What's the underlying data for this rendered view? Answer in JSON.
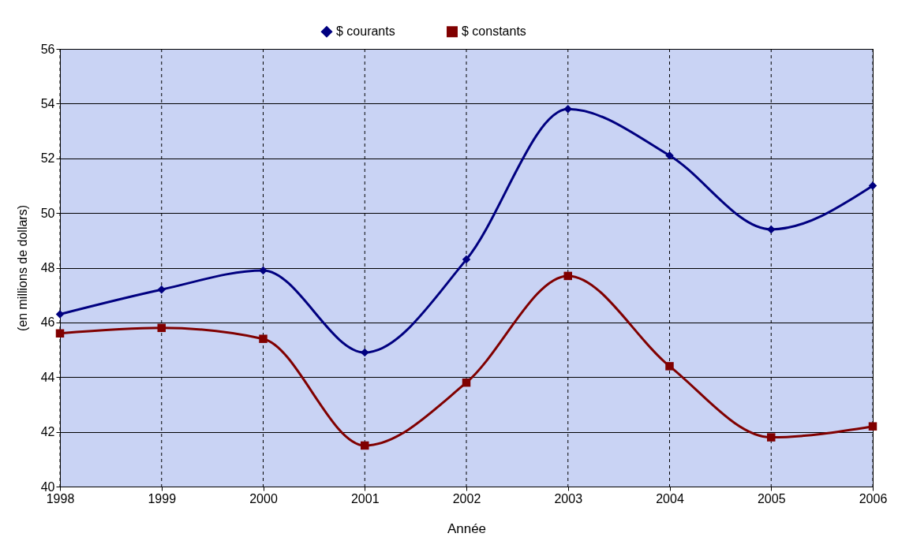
{
  "chart_data": {
    "type": "line",
    "xlabel": "Année",
    "ylabel": "(en millions de dollars)",
    "x": [
      1998,
      1999,
      2000,
      2001,
      2002,
      2003,
      2004,
      2005,
      2006
    ],
    "series": [
      {
        "name": "$ courants",
        "color": "#000080",
        "marker": "diamond",
        "values": [
          46.3,
          47.2,
          47.9,
          44.9,
          48.3,
          53.8,
          52.1,
          49.4,
          51.0
        ]
      },
      {
        "name": "$ constants",
        "color": "#800000",
        "marker": "square",
        "values": [
          45.6,
          45.8,
          45.4,
          41.5,
          43.8,
          47.7,
          44.4,
          41.8,
          42.2
        ]
      }
    ],
    "xlim": [
      1998,
      2006
    ],
    "xticks": [
      1998,
      1999,
      2000,
      2001,
      2002,
      2003,
      2004,
      2005,
      2006
    ],
    "ylim": [
      40,
      56
    ],
    "yticks": [
      40,
      42,
      44,
      46,
      48,
      50,
      52,
      54,
      56
    ],
    "grid": true,
    "legend": "top",
    "line_style": "solid"
  }
}
